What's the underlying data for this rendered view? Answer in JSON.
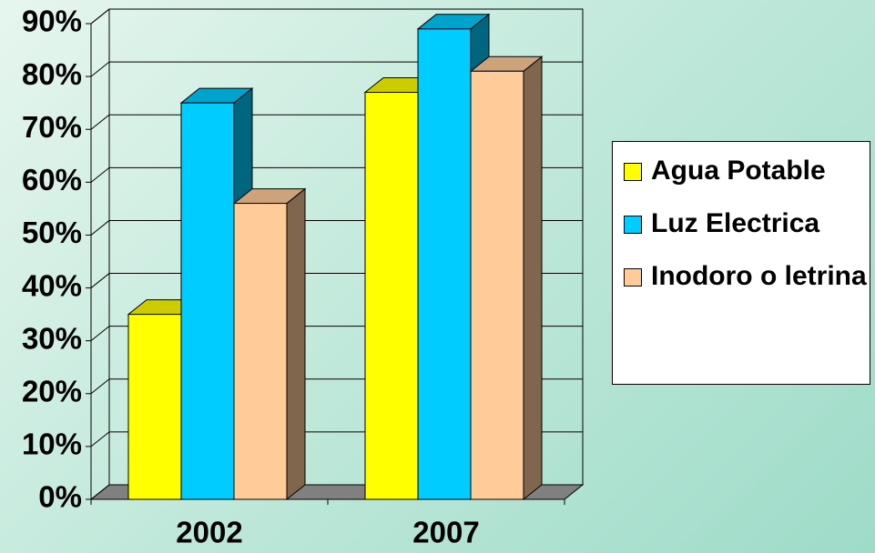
{
  "chart_data": {
    "type": "bar3d",
    "categories": [
      "2002",
      "2007"
    ],
    "series": [
      {
        "name": "Agua Potable",
        "color": "#ffff00",
        "values": [
          35,
          77
        ]
      },
      {
        "name": "Luz Electrica",
        "color": "#00ccff",
        "values": [
          75,
          89
        ]
      },
      {
        "name": "Inodoro o letrina",
        "color": "#ffcc99",
        "values": [
          56,
          81
        ]
      }
    ],
    "ylim": [
      0,
      90
    ],
    "yticks": [
      {
        "value": 0,
        "label": "0%"
      },
      {
        "value": 10,
        "label": "10%"
      },
      {
        "value": 20,
        "label": "20%"
      },
      {
        "value": 30,
        "label": "30%"
      },
      {
        "value": 40,
        "label": "40%"
      },
      {
        "value": 50,
        "label": "50%"
      },
      {
        "value": 60,
        "label": "60%"
      },
      {
        "value": 70,
        "label": "70%"
      },
      {
        "value": 80,
        "label": "80%"
      },
      {
        "value": 90,
        "label": "90%"
      }
    ],
    "grid": true,
    "legend": "right"
  }
}
